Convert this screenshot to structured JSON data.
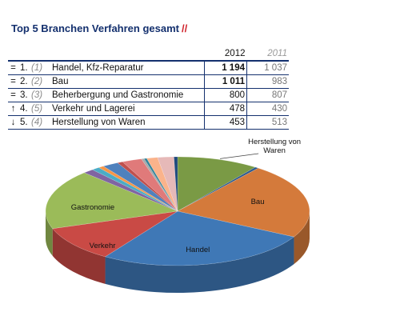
{
  "title": "Top 5 Branchen Verfahren gesamt",
  "title_suffix": "//",
  "table": {
    "year_main": "2012",
    "year_prev": "2011",
    "rows": [
      {
        "mark": "=",
        "rank": "1.",
        "prev_rank": "(1)",
        "name": "Handel, Kfz-Reparatur",
        "v2012": "1 194",
        "v2011": "1 037",
        "bold": true
      },
      {
        "mark": "=",
        "rank": "2.",
        "prev_rank": "(2)",
        "name": "Bau",
        "v2012": "1 011",
        "v2011": "983",
        "bold": true
      },
      {
        "mark": "=",
        "rank": "3.",
        "prev_rank": "(3)",
        "name": "Beherbergung und Gastronomie",
        "v2012": "800",
        "v2011": "807",
        "bold": false
      },
      {
        "mark": "↑",
        "rank": "4.",
        "prev_rank": "(5)",
        "name": "Verkehr und Lagerei",
        "v2012": "478",
        "v2011": "430",
        "bold": false
      },
      {
        "mark": "↓",
        "rank": "5.",
        "prev_rank": "(4)",
        "name": "Herstellung von Waren",
        "v2012": "453",
        "v2011": "513",
        "bold": false
      }
    ]
  },
  "chart_data": {
    "type": "pie",
    "title": "",
    "slices": [
      {
        "label": "Herstellung von Waren",
        "label_lines": [
          "Herstellung von",
          "Waren"
        ],
        "value": 453,
        "color": "#7a9a45"
      },
      {
        "label": "",
        "value": 20,
        "color": "#2d5a8e"
      },
      {
        "label": "Bau",
        "label_lines": [
          "Bau"
        ],
        "value": 1011,
        "color": "#d47a3b"
      },
      {
        "label": "Handel",
        "label_lines": [
          "Handel"
        ],
        "value": 1194,
        "color": "#3f78b6"
      },
      {
        "label": "Verkehr",
        "label_lines": [
          "Verkehr"
        ],
        "value": 478,
        "color": "#c94a45"
      },
      {
        "label": "Gastronomie",
        "label_lines": [
          "Gastronomie"
        ],
        "value": 800,
        "color": "#9bbb59"
      },
      {
        "label": "",
        "value": 60,
        "color": "#8064a2"
      },
      {
        "label": "",
        "value": 45,
        "color": "#4bacc6"
      },
      {
        "label": "",
        "value": 30,
        "color": "#f79646"
      },
      {
        "label": "",
        "value": 90,
        "color": "#4f81bd"
      },
      {
        "label": "",
        "value": 30,
        "color": "#c0504d"
      },
      {
        "label": "",
        "value": 110,
        "color": "#e07a7a"
      },
      {
        "label": "",
        "value": 15,
        "color": "#aaaaaa"
      },
      {
        "label": "",
        "value": 15,
        "color": "#31859c"
      },
      {
        "label": "",
        "value": 60,
        "color": "#fab38b"
      },
      {
        "label": "",
        "value": 90,
        "color": "#e6b9b8"
      },
      {
        "label": "",
        "value": 20,
        "color": "#1f497d"
      }
    ]
  }
}
